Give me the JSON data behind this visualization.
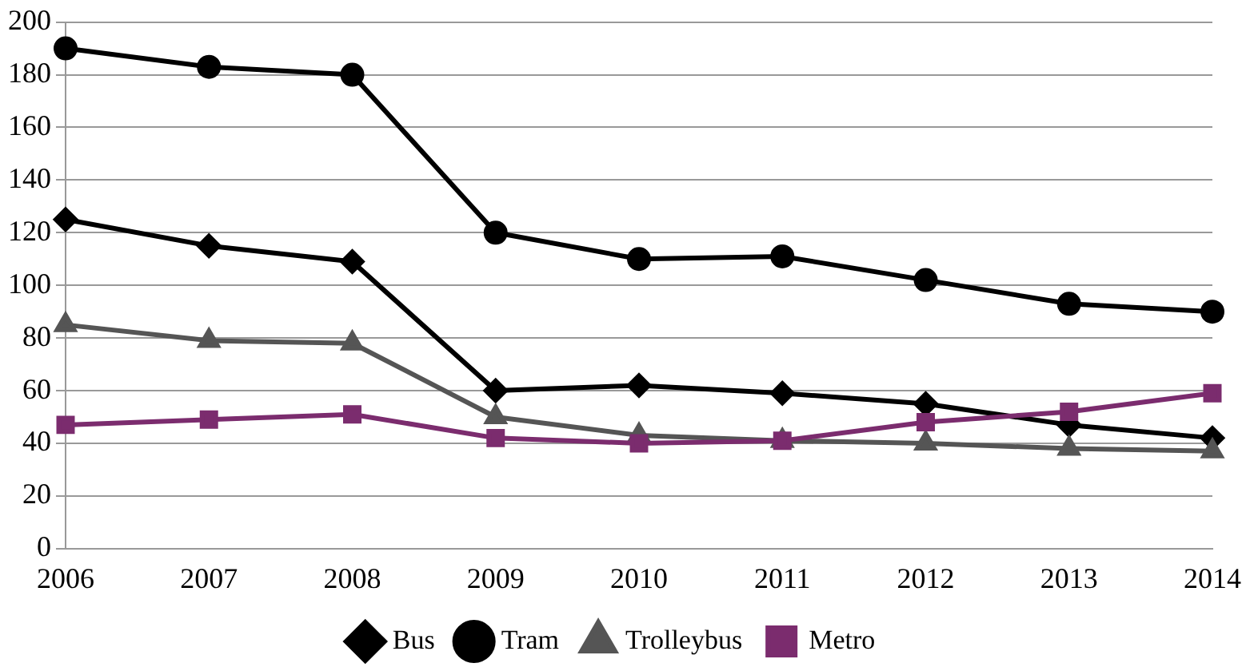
{
  "chart_data": {
    "type": "line",
    "categories": [
      "2006",
      "2007",
      "2008",
      "2009",
      "2010",
      "2011",
      "2012",
      "2013",
      "2014"
    ],
    "series": [
      {
        "name": "Bus",
        "color": "#000000",
        "marker": "diamond",
        "values": [
          125,
          115,
          109,
          60,
          62,
          59,
          55,
          47,
          42
        ]
      },
      {
        "name": "Tram",
        "color": "#000000",
        "marker": "circle",
        "values": [
          190,
          183,
          180,
          120,
          110,
          111,
          102,
          93,
          90
        ]
      },
      {
        "name": "Trolleybus",
        "color": "#555555",
        "marker": "triangle",
        "values": [
          85,
          79,
          78,
          50,
          43,
          41,
          40,
          38,
          37
        ]
      },
      {
        "name": "Metro",
        "color": "#7b2c6e",
        "marker": "square",
        "values": [
          47,
          49,
          51,
          42,
          40,
          41,
          48,
          52,
          59
        ]
      }
    ],
    "ylim": [
      0,
      200
    ],
    "yticks": [
      0,
      20,
      40,
      60,
      80,
      100,
      120,
      140,
      160,
      180,
      200
    ],
    "grid": "y",
    "legend": "bottom",
    "line_style": "solid"
  }
}
